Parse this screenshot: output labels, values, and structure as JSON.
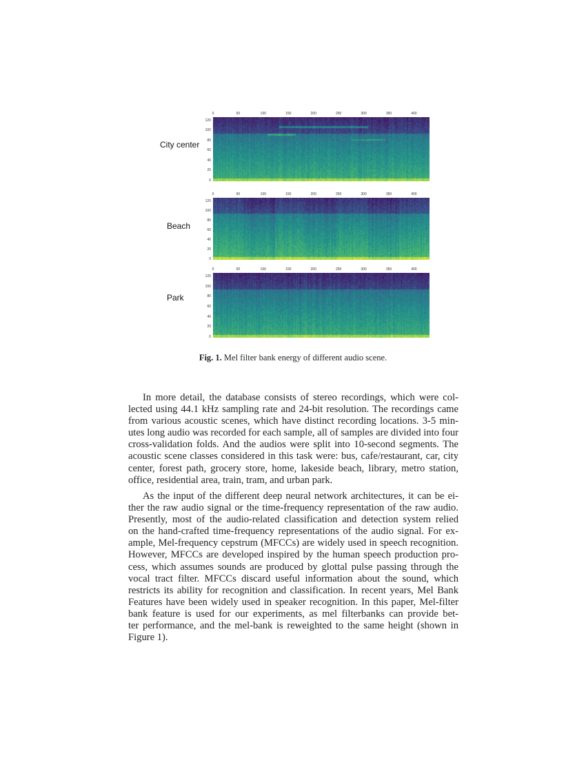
{
  "figure": {
    "panels": [
      {
        "label": "City center"
      },
      {
        "label": "Beach"
      },
      {
        "label": "Park"
      }
    ],
    "x_ticks": [
      "0",
      "50",
      "100",
      "150",
      "200",
      "250",
      "300",
      "350",
      "400"
    ],
    "y_ticks": [
      "0",
      "20",
      "40",
      "60",
      "80",
      "100",
      "120"
    ],
    "colormap": "viridis",
    "caption_label": "Fig. 1.",
    "caption_text": "Mel filter bank energy of different audio scene."
  },
  "body": {
    "paragraph1": [
      "In more detail, the database consists of stereo recordings, which were col-",
      "lected using 44.1 kHz sampling rate and 24-bit resolution. The recordings came",
      "from various acoustic scenes, which have distinct recording locations. 3-5 min-",
      "utes long audio was recorded for each sample, all of samples are divided into four",
      "cross-validation folds. And the audios were split into 10-second segments. The",
      "acoustic scene classes considered in this task were: bus, cafe/restaurant, car, city",
      "center, forest path, grocery store, home, lakeside beach, library, metro station,",
      "office, residential area, train, tram, and urban park."
    ],
    "paragraph2": [
      "As the input of the different deep neural network architectures, it can be ei-",
      "ther the raw audio signal or the time-frequency representation of the raw audio.",
      "Presently, most of the audio-related classification and detection system relied",
      "on the hand-crafted time-frequency representations of the audio signal. For ex-",
      "ample, Mel-frequency cepstrum (MFCCs) are widely used in speech recognition.",
      "However, MFCCs are developed inspired by the human speech production pro-",
      "cess, which assumes sounds are produced by glottal pulse passing through the",
      "vocal tract filter. MFCCs discard useful information about the sound, which",
      "restricts its ability for recognition and classification. In recent years, Mel Bank",
      "Features have been widely used in speaker recognition. In this paper, Mel-filter",
      "bank feature is used for our experiments, as mel filterbanks can provide bet-",
      "ter performance, and the mel-bank is reweighted to the same height (shown in",
      "Figure 1)."
    ]
  }
}
